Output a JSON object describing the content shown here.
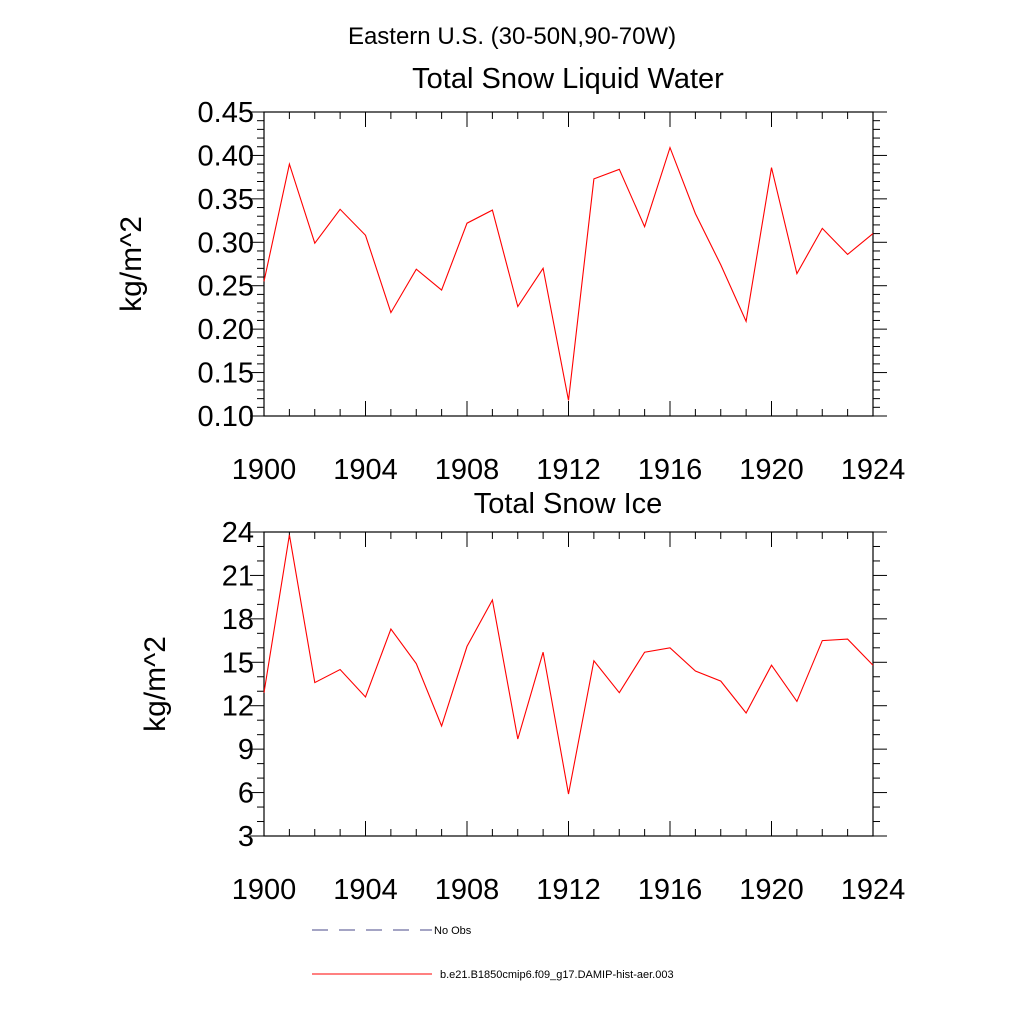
{
  "figure": {
    "title": "Eastern U.S. (30-50N,90-70W)"
  },
  "chart_data": [
    {
      "type": "line",
      "title": "Total Snow Liquid Water",
      "ylabel": "kg/m^2",
      "xlabel": "",
      "xlim": [
        1900,
        1924
      ],
      "ylim": [
        0.1,
        0.45
      ],
      "x_ticks": [
        1900,
        1904,
        1908,
        1912,
        1916,
        1920,
        1924
      ],
      "x_tick_labels": [
        "1900",
        "1904",
        "1908",
        "1912",
        "1916",
        "1920",
        "1924"
      ],
      "y_ticks": [
        0.1,
        0.15,
        0.2,
        0.25,
        0.3,
        0.35,
        0.4,
        0.45
      ],
      "y_tick_labels": [
        "0.10",
        "0.15",
        "0.20",
        "0.25",
        "0.30",
        "0.35",
        "0.40",
        "0.45"
      ],
      "grid": false,
      "series": [
        {
          "name": "b.e21.B1850cmip6.f09_g17.DAMIP-hist-aer.003",
          "color": "#ff0000",
          "x": [
            1900,
            1901,
            1902,
            1903,
            1904,
            1905,
            1906,
            1907,
            1908,
            1909,
            1910,
            1911,
            1912,
            1913,
            1914,
            1915,
            1916,
            1917,
            1918,
            1919,
            1920,
            1921,
            1922,
            1923,
            1924
          ],
          "y": [
            0.255,
            0.39,
            0.299,
            0.338,
            0.308,
            0.219,
            0.269,
            0.245,
            0.322,
            0.337,
            0.226,
            0.27,
            0.118,
            0.373,
            0.384,
            0.318,
            0.409,
            0.333,
            0.274,
            0.209,
            0.386,
            0.264,
            0.316,
            0.286,
            0.31
          ]
        }
      ]
    },
    {
      "type": "line",
      "title": "Total Snow Ice",
      "ylabel": "kg/m^2",
      "xlabel": "",
      "xlim": [
        1900,
        1924
      ],
      "ylim": [
        3,
        24
      ],
      "x_ticks": [
        1900,
        1904,
        1908,
        1912,
        1916,
        1920,
        1924
      ],
      "x_tick_labels": [
        "1900",
        "1904",
        "1908",
        "1912",
        "1916",
        "1920",
        "1924"
      ],
      "y_ticks": [
        3,
        6,
        9,
        12,
        15,
        18,
        21,
        24
      ],
      "y_tick_labels": [
        "3",
        "6",
        "9",
        "12",
        "15",
        "18",
        "21",
        "24"
      ],
      "grid": false,
      "series": [
        {
          "name": "b.e21.B1850cmip6.f09_g17.DAMIP-hist-aer.003",
          "color": "#ff0000",
          "x": [
            1900,
            1901,
            1902,
            1903,
            1904,
            1905,
            1906,
            1907,
            1908,
            1909,
            1910,
            1911,
            1912,
            1913,
            1914,
            1915,
            1916,
            1917,
            1918,
            1919,
            1920,
            1921,
            1922,
            1923,
            1924
          ],
          "y": [
            12.9,
            23.8,
            13.6,
            14.5,
            12.6,
            17.3,
            14.9,
            10.6,
            16.1,
            19.3,
            9.7,
            15.7,
            5.9,
            15.1,
            12.9,
            15.7,
            16.0,
            14.4,
            13.7,
            11.5,
            14.8,
            12.3,
            16.5,
            16.6,
            14.8
          ]
        }
      ]
    }
  ],
  "legend": {
    "placement": "bottom-center",
    "items": [
      {
        "label": "No Obs",
        "color": "#4a4a8a",
        "style": "dashed"
      },
      {
        "label": "b.e21.B1850cmip6.f09_g17.DAMIP-hist-aer.003",
        "color": "#ff0000",
        "style": "solid"
      }
    ]
  }
}
